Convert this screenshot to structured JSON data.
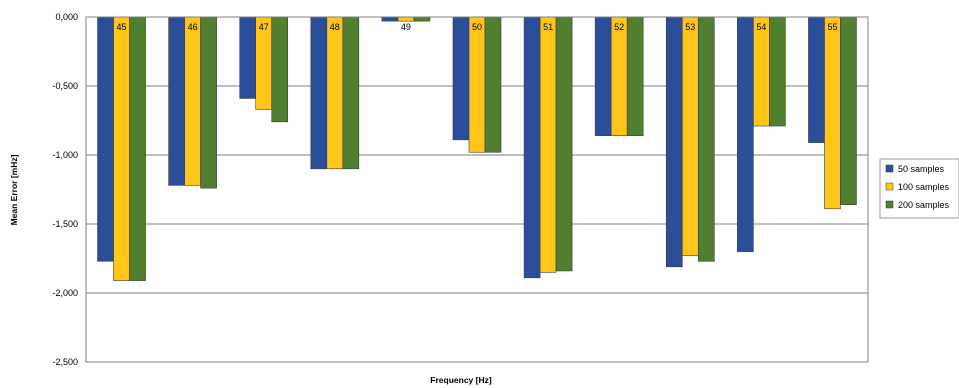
{
  "chart_data": {
    "type": "bar",
    "title": "",
    "xlabel": "Frequency [Hz]",
    "ylabel": "Mean Error [mHz]",
    "ylim": [
      -2.5,
      0
    ],
    "yticks": [
      "0,000",
      "-0,500",
      "-1,000",
      "-1,500",
      "-2,000",
      "-2,500"
    ],
    "ytick_values": [
      0,
      -0.5,
      -1.0,
      -1.5,
      -2.0,
      -2.5
    ],
    "grid": "horizontal",
    "legend_position": "right",
    "categories": [
      "45",
      "46",
      "47",
      "48",
      "49",
      "50",
      "51",
      "52",
      "53",
      "54",
      "55"
    ],
    "series": [
      {
        "name": "50 samples",
        "color": "#2B4E9B",
        "values": [
          -1.77,
          -1.22,
          -0.59,
          -1.1,
          -0.03,
          -0.89,
          -1.89,
          -0.86,
          -1.81,
          -1.7,
          -0.91
        ]
      },
      {
        "name": "100 samples",
        "color": "#FFC61A",
        "values": [
          -1.91,
          -1.22,
          -0.67,
          -1.1,
          -0.03,
          -0.98,
          -1.85,
          -0.86,
          -1.73,
          -0.79,
          -1.39
        ]
      },
      {
        "name": "200 samples",
        "color": "#4F7F2F",
        "values": [
          -1.91,
          -1.24,
          -0.76,
          -1.1,
          -0.03,
          -0.98,
          -1.84,
          -0.86,
          -1.77,
          -0.79,
          -1.36
        ]
      }
    ]
  }
}
